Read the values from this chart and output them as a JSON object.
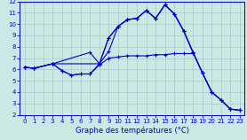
{
  "xlabel": "Graphe des températures (°C)",
  "background_color": "#cce8e4",
  "grid_color": "#aacfcb",
  "line_color": "#0000cc",
  "xlim": [
    -0.5,
    23.5
  ],
  "ylim": [
    2,
    12
  ],
  "yticks": [
    2,
    3,
    4,
    5,
    6,
    7,
    8,
    9,
    10,
    11,
    12
  ],
  "xticks": [
    0,
    1,
    2,
    3,
    4,
    5,
    6,
    7,
    8,
    9,
    10,
    11,
    12,
    13,
    14,
    15,
    16,
    17,
    18,
    19,
    20,
    21,
    22,
    23
  ],
  "series": [
    {
      "x": [
        0,
        1,
        3,
        8,
        9,
        10,
        11,
        12,
        13,
        14,
        15,
        16,
        17,
        18,
        19,
        20,
        21,
        22,
        23
      ],
      "y": [
        6.2,
        6.1,
        6.5,
        6.5,
        8.8,
        9.8,
        10.4,
        10.5,
        11.2,
        10.5,
        11.7,
        10.9,
        9.4,
        7.5,
        5.7,
        4.0,
        3.3,
        2.5,
        2.4
      ]
    },
    {
      "x": [
        0,
        1,
        3,
        7,
        8,
        9,
        10,
        11,
        12,
        13,
        14,
        15,
        16,
        17,
        18,
        19,
        20,
        21,
        22,
        23
      ],
      "y": [
        6.2,
        6.1,
        6.5,
        7.5,
        6.5,
        8.8,
        9.8,
        10.4,
        10.5,
        11.2,
        10.5,
        11.7,
        10.9,
        9.4,
        7.5,
        5.7,
        4.0,
        3.3,
        2.5,
        2.4
      ]
    },
    {
      "x": [
        0,
        1,
        3,
        4,
        5,
        6,
        7,
        8,
        9,
        10,
        11,
        12,
        13,
        14,
        15,
        16,
        17,
        18
      ],
      "y": [
        6.2,
        6.1,
        6.5,
        5.9,
        5.5,
        5.6,
        5.6,
        6.4,
        7.0,
        7.1,
        7.2,
        7.2,
        7.2,
        7.3,
        7.3,
        7.4,
        7.4,
        7.4
      ]
    },
    {
      "x": [
        0,
        1,
        3,
        4,
        5,
        6,
        7,
        8,
        9,
        10,
        11,
        12,
        13,
        14,
        15,
        16,
        17,
        18,
        19,
        20,
        21,
        22,
        23
      ],
      "y": [
        6.2,
        6.1,
        6.5,
        5.9,
        5.5,
        5.6,
        5.6,
        6.5,
        7.6,
        9.8,
        10.4,
        10.5,
        11.2,
        10.5,
        11.7,
        10.9,
        9.4,
        7.5,
        5.7,
        4.0,
        3.3,
        2.5,
        2.4
      ]
    }
  ]
}
